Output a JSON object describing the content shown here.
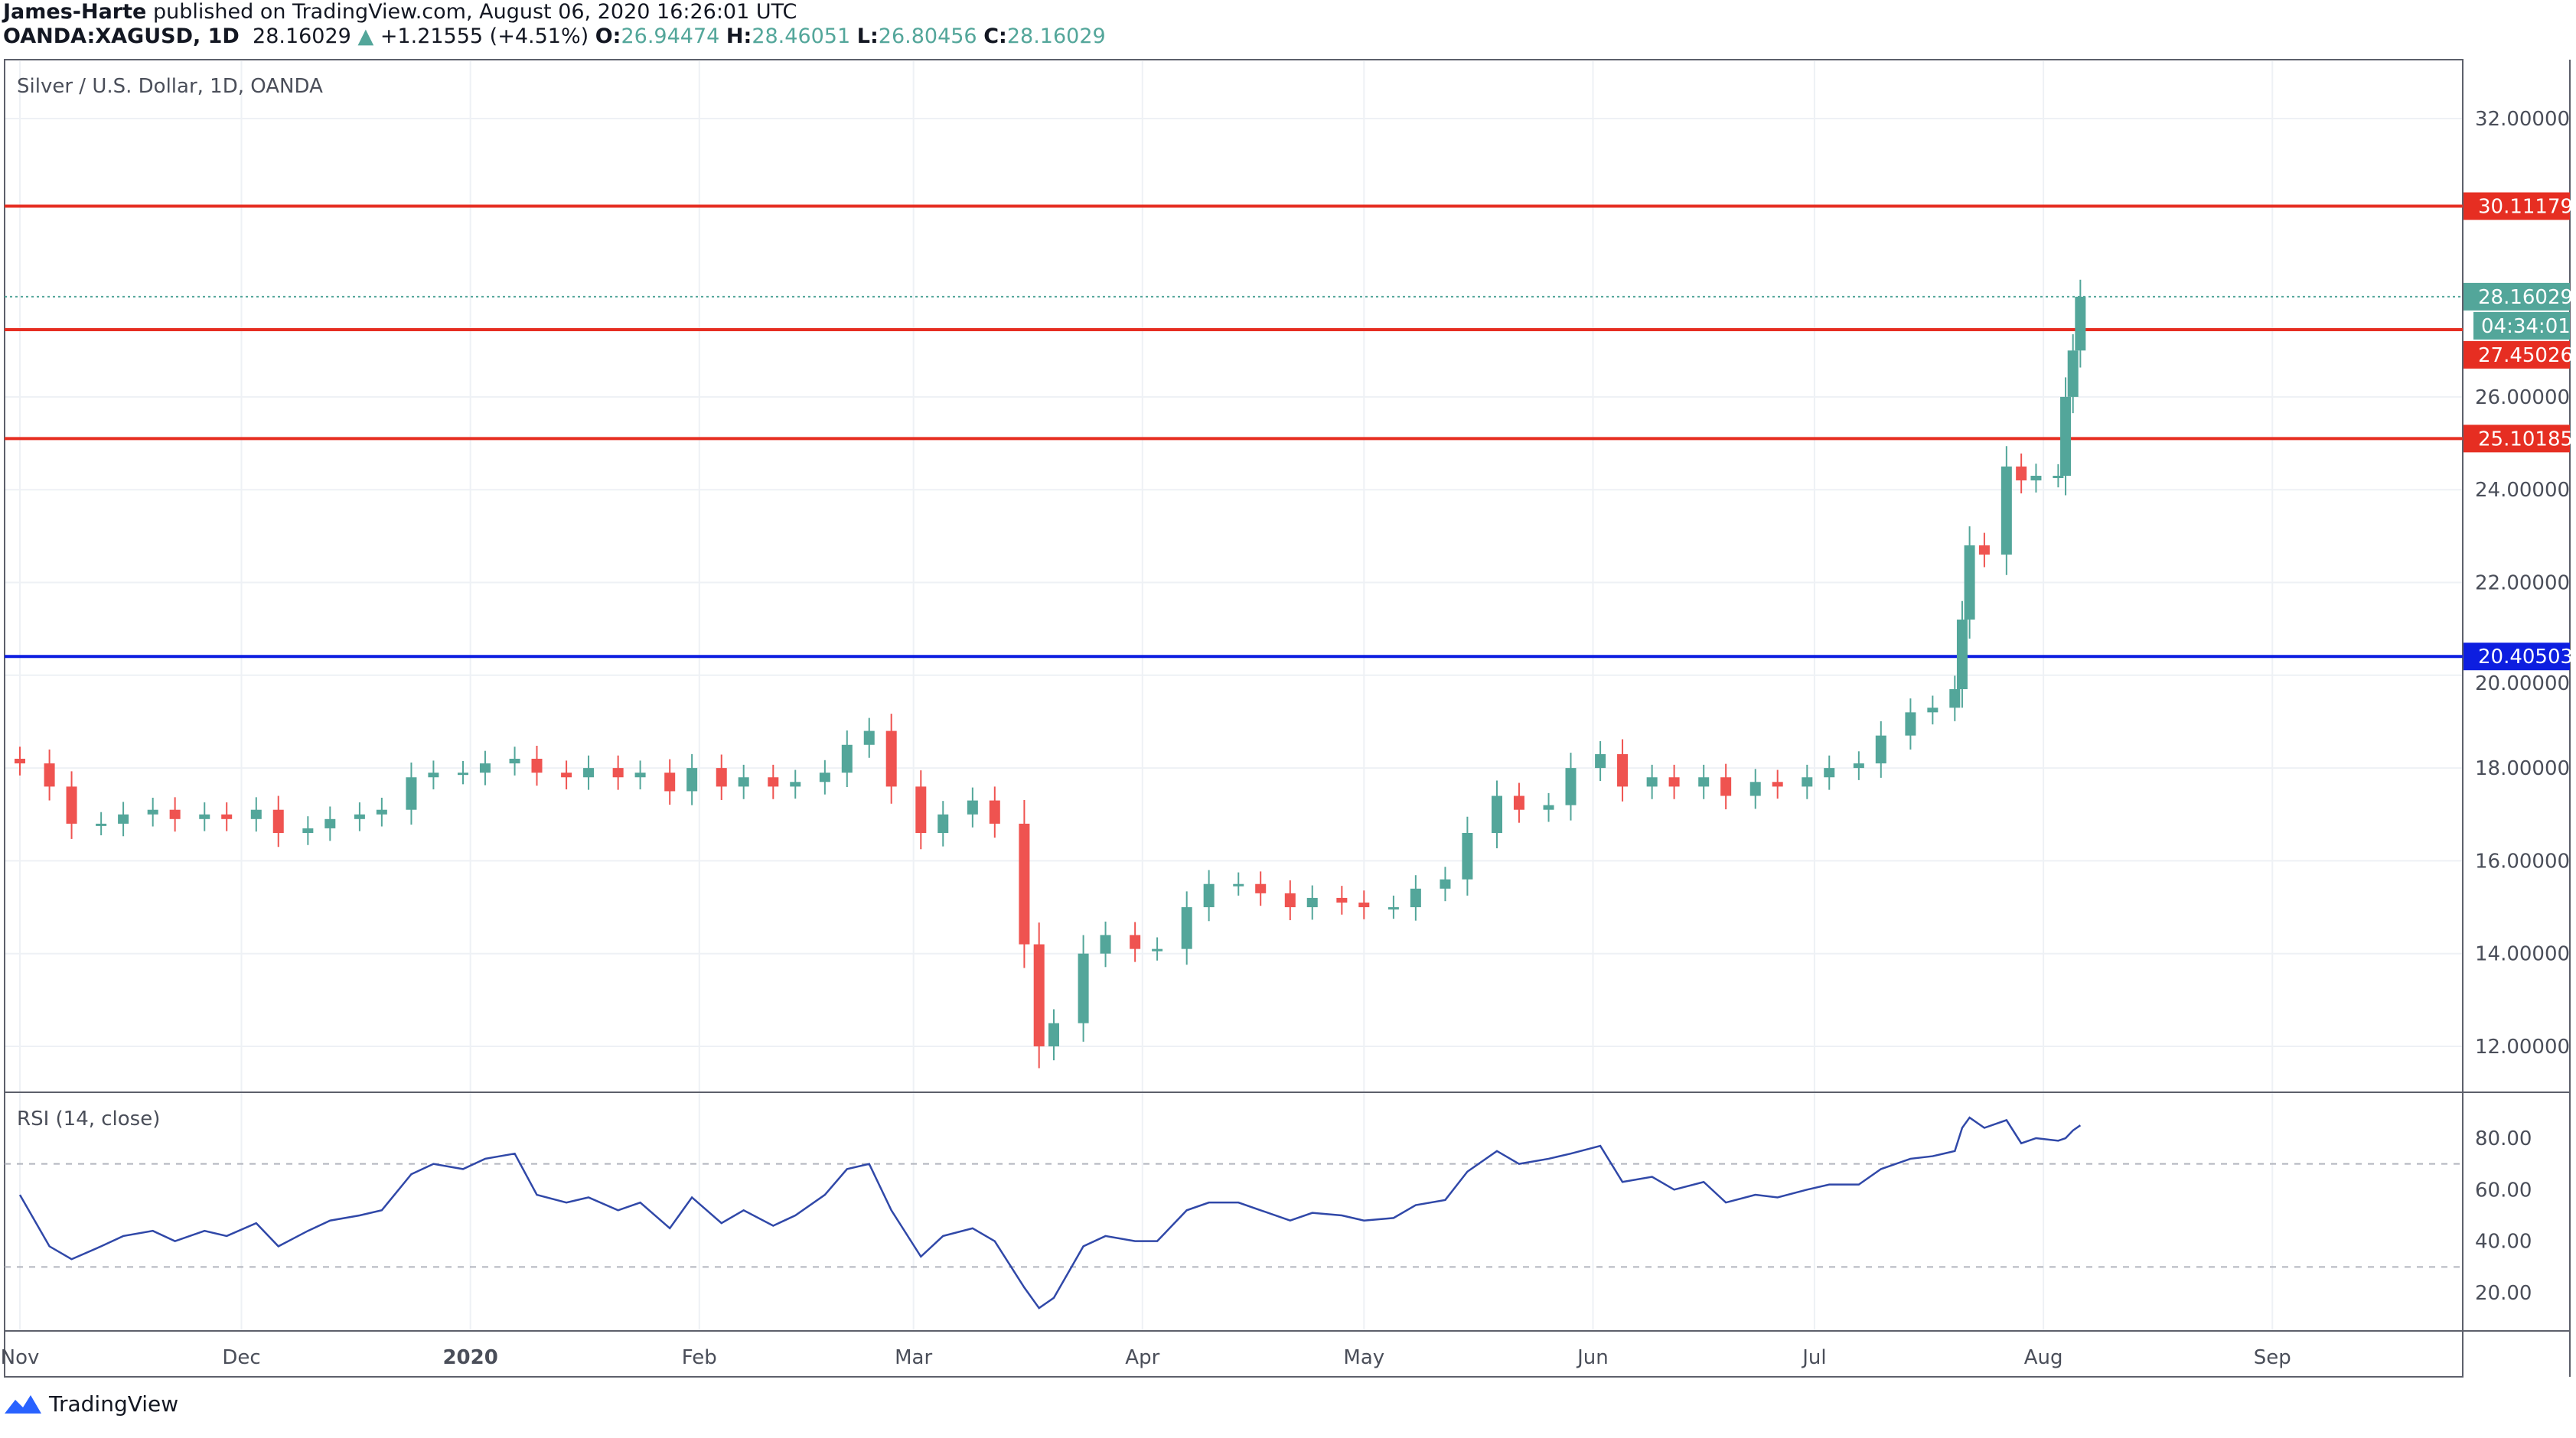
{
  "header": {
    "author": "James-Harte",
    "published": "published on TradingView.com, August 06, 2020 16:26:01 UTC",
    "symbol": "OANDA:XAGUSD, 1D",
    "last": "28.16029",
    "change": "+1.21555 (+4.51%)",
    "o_label": "O:",
    "o": "26.94474",
    "h_label": "H:",
    "h": "28.46051",
    "l_label": "L:",
    "l": "26.80456",
    "c_label": "C:",
    "c": "28.16029"
  },
  "footer": {
    "brand": "TradingView",
    "icon": "tradingview-logo-icon"
  },
  "colors": {
    "up": "#53a69a",
    "down": "#ef5350",
    "support": "#e62e22",
    "blue": "#0d1ee0",
    "rsi": "#3048a8"
  },
  "chart_data": [
    {
      "type": "candlestick",
      "title": "Silver / U.S. Dollar, 1D, OANDA",
      "ylim": [
        11,
        33
      ],
      "yticks": [
        "32.00000",
        "26.00000",
        "24.00000",
        "22.00000",
        "20.00000",
        "18.00000",
        "16.00000",
        "14.00000",
        "12.00000"
      ],
      "xticks": [
        {
          "date": "2019-11-01",
          "label": "Nov"
        },
        {
          "date": "2019-12-01",
          "label": "Dec"
        },
        {
          "date": "2020-01-01",
          "label": "2020"
        },
        {
          "date": "2020-02-01",
          "label": "Feb"
        },
        {
          "date": "2020-03-01",
          "label": "Mar"
        },
        {
          "date": "2020-04-01",
          "label": "Apr"
        },
        {
          "date": "2020-05-01",
          "label": "May"
        },
        {
          "date": "2020-06-01",
          "label": "Jun"
        },
        {
          "date": "2020-07-01",
          "label": "Jul"
        },
        {
          "date": "2020-08-01",
          "label": "Aug"
        },
        {
          "date": "2020-09-01",
          "label": "Sep"
        }
      ],
      "hlines": [
        {
          "value": 30.11179,
          "label": "30.11179",
          "color": "red"
        },
        {
          "value": 27.45026,
          "label": "27.45026",
          "color": "red"
        },
        {
          "value": 25.10185,
          "label": "25.10185",
          "color": "red"
        },
        {
          "value": 20.40503,
          "label": "20.40503",
          "color": "blue"
        }
      ],
      "last_price": {
        "value": 28.16029,
        "label": "28.16029",
        "countdown": "04:34:01"
      },
      "dates": [
        "2019-11-01",
        "2019-11-05",
        "2019-11-08",
        "2019-11-12",
        "2019-11-15",
        "2019-11-19",
        "2019-11-22",
        "2019-11-26",
        "2019-11-29",
        "2019-12-03",
        "2019-12-06",
        "2019-12-10",
        "2019-12-13",
        "2019-12-17",
        "2019-12-20",
        "2019-12-24",
        "2019-12-27",
        "2019-12-31",
        "2020-01-03",
        "2020-01-07",
        "2020-01-10",
        "2020-01-14",
        "2020-01-17",
        "2020-01-21",
        "2020-01-24",
        "2020-01-28",
        "2020-01-31",
        "2020-02-04",
        "2020-02-07",
        "2020-02-11",
        "2020-02-14",
        "2020-02-18",
        "2020-02-21",
        "2020-02-24",
        "2020-02-27",
        "2020-03-02",
        "2020-03-05",
        "2020-03-09",
        "2020-03-12",
        "2020-03-16",
        "2020-03-18",
        "2020-03-20",
        "2020-03-24",
        "2020-03-27",
        "2020-03-31",
        "2020-04-03",
        "2020-04-07",
        "2020-04-10",
        "2020-04-14",
        "2020-04-17",
        "2020-04-21",
        "2020-04-24",
        "2020-04-28",
        "2020-05-01",
        "2020-05-05",
        "2020-05-08",
        "2020-05-12",
        "2020-05-15",
        "2020-05-19",
        "2020-05-22",
        "2020-05-26",
        "2020-05-29",
        "2020-06-02",
        "2020-06-05",
        "2020-06-09",
        "2020-06-12",
        "2020-06-16",
        "2020-06-19",
        "2020-06-23",
        "2020-06-26",
        "2020-06-30",
        "2020-07-03",
        "2020-07-07",
        "2020-07-10",
        "2020-07-14",
        "2020-07-17",
        "2020-07-20",
        "2020-07-21",
        "2020-07-22",
        "2020-07-24",
        "2020-07-27",
        "2020-07-29",
        "2020-07-31",
        "2020-08-03",
        "2020-08-04",
        "2020-08-05",
        "2020-08-06"
      ],
      "close": [
        18.1,
        17.6,
        16.8,
        16.8,
        17.0,
        17.1,
        16.9,
        17.0,
        16.9,
        17.1,
        16.6,
        16.7,
        16.9,
        17.0,
        17.1,
        17.8,
        17.9,
        17.9,
        18.1,
        18.2,
        17.9,
        17.8,
        18.0,
        17.8,
        17.9,
        17.5,
        18.0,
        17.6,
        17.8,
        17.6,
        17.7,
        17.9,
        18.5,
        18.8,
        17.6,
        16.6,
        17.0,
        17.3,
        16.8,
        14.2,
        12.0,
        12.5,
        14.0,
        14.4,
        14.1,
        14.1,
        15.0,
        15.5,
        15.5,
        15.3,
        15.0,
        15.2,
        15.1,
        15.0,
        15.0,
        15.4,
        15.6,
        16.6,
        17.4,
        17.1,
        17.2,
        18.0,
        18.3,
        17.6,
        17.8,
        17.6,
        17.8,
        17.4,
        17.7,
        17.6,
        17.8,
        18.0,
        18.1,
        18.7,
        19.2,
        19.3,
        19.7,
        21.2,
        22.8,
        22.6,
        24.5,
        24.2,
        24.3,
        24.3,
        26.0,
        27.0,
        28.16
      ]
    },
    {
      "type": "line",
      "title": "RSI (14, close)",
      "ylim": [
        10,
        90
      ],
      "yticks": [
        "80.00",
        "60.00",
        "40.00",
        "20.00"
      ],
      "bands": [
        30,
        70
      ],
      "values": [
        58,
        38,
        33,
        38,
        42,
        44,
        40,
        44,
        42,
        47,
        38,
        44,
        48,
        50,
        52,
        66,
        70,
        68,
        72,
        74,
        58,
        55,
        57,
        52,
        55,
        45,
        57,
        47,
        52,
        46,
        50,
        58,
        68,
        70,
        52,
        34,
        42,
        45,
        40,
        22,
        14,
        18,
        38,
        42,
        40,
        40,
        52,
        55,
        55,
        52,
        48,
        51,
        50,
        48,
        49,
        54,
        56,
        67,
        75,
        70,
        72,
        74,
        77,
        63,
        65,
        60,
        63,
        55,
        58,
        57,
        60,
        62,
        62,
        68,
        72,
        73,
        75,
        84,
        88,
        84,
        87,
        78,
        80,
        79,
        80,
        83,
        85
      ]
    }
  ]
}
